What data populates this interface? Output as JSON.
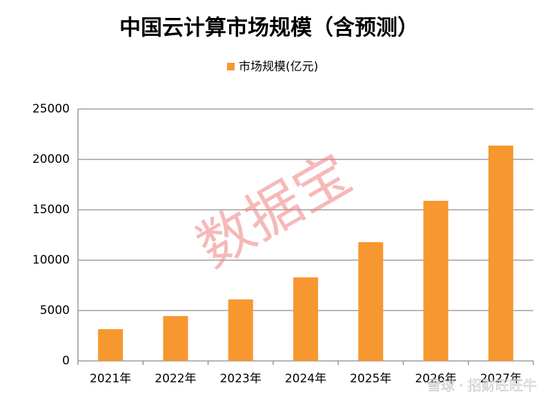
{
  "chart_data": {
    "type": "bar",
    "title": "中国云计算市场规模（含预测）",
    "categories": [
      "2021年",
      "2022年",
      "2023年",
      "2024年",
      "2025年",
      "2026年",
      "2027年"
    ],
    "series": [
      {
        "name": "市场规模(亿元)",
        "color": "#f7972f",
        "values": [
          3150,
          4450,
          6100,
          8290,
          11780,
          15890,
          21370
        ]
      }
    ],
    "ylim": [
      0,
      25000
    ],
    "yticks": [
      0,
      5000,
      10000,
      15000,
      20000,
      25000
    ],
    "grid": true,
    "legend": "top",
    "watermarks": [
      "数据宝",
      "雪球 · 招财旺旺牛"
    ]
  }
}
